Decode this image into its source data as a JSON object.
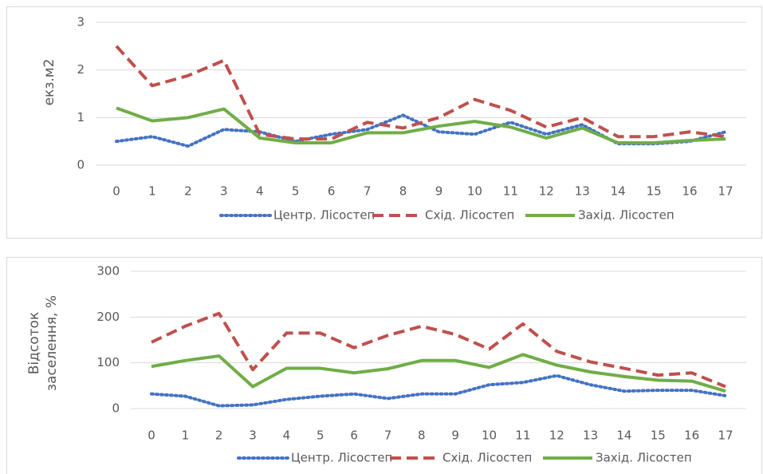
{
  "chart_data": [
    {
      "type": "line",
      "ylabel": "екз.м2",
      "categories": [
        "0",
        "1",
        "2",
        "3",
        "4",
        "5",
        "6",
        "7",
        "8",
        "9",
        "10",
        "11",
        "12",
        "13",
        "14",
        "15",
        "16",
        "17"
      ],
      "ylim": [
        0,
        3
      ],
      "yticks": [
        0,
        1,
        2,
        3
      ],
      "grid": true,
      "legend": "bottom",
      "series": [
        {
          "name": "Центр. Лісостеп",
          "color": "#4472c4",
          "dash": "dotted",
          "values": [
            0.5,
            0.6,
            0.4,
            0.75,
            0.7,
            0.5,
            0.65,
            0.75,
            1.05,
            0.7,
            0.65,
            0.9,
            0.65,
            0.85,
            0.45,
            0.45,
            0.5,
            0.7
          ]
        },
        {
          "name": "Схід. Лісостеп",
          "color": "#c0504d",
          "dash": "dashed",
          "values": [
            2.5,
            1.67,
            1.88,
            2.2,
            0.65,
            0.55,
            0.55,
            0.9,
            0.78,
            1.0,
            1.38,
            1.15,
            0.8,
            1.0,
            0.6,
            0.6,
            0.7,
            0.6
          ]
        },
        {
          "name": "Захід. Лісостеп",
          "color": "#70ad47",
          "dash": "solid",
          "values": [
            1.2,
            0.93,
            1.0,
            1.18,
            0.57,
            0.47,
            0.47,
            0.68,
            0.68,
            0.82,
            0.92,
            0.8,
            0.57,
            0.78,
            0.47,
            0.47,
            0.52,
            0.55
          ]
        }
      ]
    },
    {
      "type": "line",
      "ylabel": [
        "Відсоток",
        "заселення, %"
      ],
      "categories": [
        "0",
        "1",
        "2",
        "3",
        "4",
        "5",
        "6",
        "7",
        "8",
        "9",
        "10",
        "11",
        "12",
        "13",
        "14",
        "15",
        "16",
        "17"
      ],
      "ylim": [
        0,
        300
      ],
      "yticks": [
        0,
        100,
        200,
        300
      ],
      "grid": true,
      "legend": "bottom",
      "series": [
        {
          "name": "Центр. Лісостеп",
          "color": "#4472c4",
          "dash": "dotted",
          "values": [
            32,
            27,
            6,
            8,
            20,
            27,
            32,
            22,
            32,
            32,
            52,
            57,
            72,
            52,
            38,
            40,
            40,
            28
          ]
        },
        {
          "name": "Схід. Лісостеп",
          "color": "#c0504d",
          "dash": "dashed",
          "values": [
            145,
            180,
            208,
            85,
            165,
            165,
            133,
            160,
            180,
            162,
            130,
            185,
            125,
            102,
            88,
            73,
            78,
            48
          ]
        },
        {
          "name": "Захід. Лісостеп",
          "color": "#70ad47",
          "dash": "solid",
          "values": [
            92,
            105,
            115,
            48,
            88,
            88,
            78,
            87,
            105,
            105,
            90,
            118,
            95,
            80,
            70,
            62,
            60,
            38
          ]
        }
      ]
    }
  ]
}
